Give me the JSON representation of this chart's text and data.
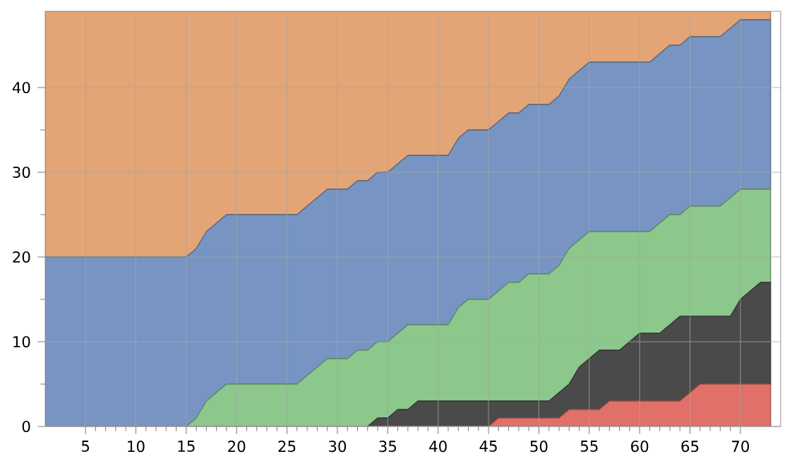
{
  "chart_data": {
    "type": "area",
    "stacked": true,
    "grid": true,
    "x": [
      1,
      2,
      3,
      4,
      5,
      6,
      7,
      8,
      9,
      10,
      11,
      12,
      13,
      14,
      15,
      16,
      17,
      18,
      19,
      20,
      21,
      22,
      23,
      24,
      25,
      26,
      27,
      28,
      29,
      30,
      31,
      32,
      33,
      34,
      35,
      36,
      37,
      38,
      39,
      40,
      41,
      42,
      43,
      44,
      45,
      46,
      47,
      48,
      49,
      50,
      51,
      52,
      53,
      54,
      55,
      56,
      57,
      58,
      59,
      60,
      61,
      62,
      63,
      64,
      65,
      66,
      67,
      68,
      69,
      70,
      71,
      72,
      73
    ],
    "xlim": [
      1,
      74
    ],
    "xticks": [
      5,
      10,
      15,
      20,
      25,
      30,
      35,
      40,
      45,
      50,
      55,
      60,
      65,
      70
    ],
    "ylim": [
      0,
      49
    ],
    "yticks": [
      0,
      10,
      20,
      30,
      40
    ],
    "series": [
      {
        "color": "#e07068",
        "values": [
          0,
          0,
          0,
          0,
          0,
          0,
          0,
          0,
          0,
          0,
          0,
          0,
          0,
          0,
          0,
          0,
          0,
          0,
          0,
          0,
          0,
          0,
          0,
          0,
          0,
          0,
          0,
          0,
          0,
          0,
          0,
          0,
          0,
          0,
          0,
          0,
          0,
          0,
          0,
          0,
          0,
          0,
          0,
          0,
          0,
          1,
          1,
          1,
          1,
          1,
          1,
          1,
          2,
          2,
          2,
          2,
          3,
          3,
          3,
          3,
          3,
          3,
          3,
          3,
          4,
          5,
          5,
          5,
          5,
          5,
          5,
          5,
          5
        ]
      },
      {
        "color": "#4a4a4a",
        "values": [
          0,
          0,
          0,
          0,
          0,
          0,
          0,
          0,
          0,
          0,
          0,
          0,
          0,
          0,
          0,
          0,
          0,
          0,
          0,
          0,
          0,
          0,
          0,
          0,
          0,
          0,
          0,
          0,
          0,
          0,
          0,
          0,
          0,
          1,
          1,
          2,
          2,
          3,
          3,
          3,
          3,
          3,
          3,
          3,
          3,
          2,
          2,
          2,
          2,
          2,
          2,
          3,
          3,
          5,
          6,
          7,
          6,
          6,
          7,
          8,
          8,
          8,
          9,
          10,
          9,
          8,
          8,
          8,
          8,
          10,
          11,
          12,
          12
        ]
      },
      {
        "color": "#8cc78c",
        "values": [
          0,
          0,
          0,
          0,
          0,
          0,
          0,
          0,
          0,
          0,
          0,
          0,
          0,
          0,
          0,
          1,
          3,
          4,
          5,
          5,
          5,
          5,
          5,
          5,
          5,
          5,
          6,
          7,
          8,
          8,
          8,
          9,
          9,
          9,
          9,
          9,
          10,
          9,
          9,
          9,
          9,
          11,
          12,
          12,
          12,
          13,
          14,
          14,
          15,
          15,
          15,
          15,
          16,
          15,
          15,
          14,
          14,
          14,
          13,
          12,
          12,
          13,
          13,
          12,
          13,
          13,
          13,
          13,
          14,
          13,
          12,
          11,
          11
        ]
      },
      {
        "color": "#7794c2",
        "values": [
          20,
          20,
          20,
          20,
          20,
          20,
          20,
          20,
          20,
          20,
          20,
          20,
          20,
          20,
          20,
          20,
          20,
          20,
          20,
          20,
          20,
          20,
          20,
          20,
          20,
          20,
          20,
          20,
          20,
          20,
          20,
          20,
          20,
          20,
          20,
          20,
          20,
          20,
          20,
          20,
          20,
          20,
          20,
          20,
          20,
          20,
          20,
          20,
          20,
          20,
          20,
          20,
          20,
          20,
          20,
          20,
          20,
          20,
          20,
          20,
          20,
          20,
          20,
          20,
          20,
          20,
          20,
          20,
          20,
          20,
          20,
          20,
          20
        ]
      },
      {
        "color": "#e3a576",
        "values": [
          29,
          29,
          29,
          29,
          29,
          29,
          29,
          29,
          29,
          29,
          29,
          29,
          29,
          29,
          29,
          28,
          26,
          25,
          24,
          24,
          24,
          24,
          24,
          24,
          24,
          24,
          23,
          22,
          21,
          21,
          21,
          20,
          20,
          19,
          19,
          18,
          17,
          17,
          17,
          17,
          17,
          15,
          14,
          14,
          14,
          13,
          12,
          12,
          11,
          11,
          11,
          10,
          8,
          7,
          6,
          6,
          6,
          6,
          6,
          6,
          6,
          5,
          4,
          4,
          3,
          3,
          3,
          3,
          2,
          1,
          1,
          1,
          1
        ]
      }
    ]
  }
}
